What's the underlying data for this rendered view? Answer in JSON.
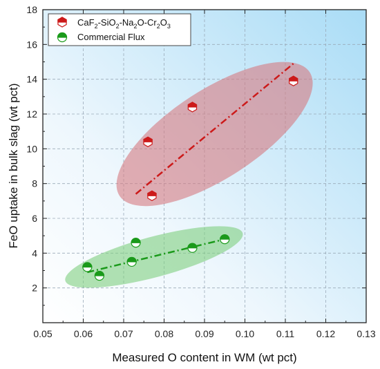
{
  "chart_data": {
    "type": "scatter",
    "xlabel": "Measured O content in WM (wt pct)",
    "ylabel": "FeO uptake in bulk slag (wt pct)",
    "xlim": [
      0.05,
      0.13
    ],
    "ylim": [
      0,
      18
    ],
    "xticks": [
      "0.05",
      "0.06",
      "0.07",
      "0.08",
      "0.09",
      "0.10",
      "0.11",
      "0.12",
      "0.13"
    ],
    "yticks": [
      "2",
      "4",
      "6",
      "8",
      "10",
      "12",
      "14",
      "16",
      "18"
    ],
    "grid": true,
    "legend_position": "top-left",
    "series": [
      {
        "name_parts": [
          "CaF",
          "2",
          "-SiO",
          "2",
          "-Na",
          "2",
          "O-Cr",
          "2",
          "O",
          "3"
        ],
        "color": "#cc1a1a",
        "marker": "hexagon-half",
        "ellipse_color": "#d67a80",
        "points": [
          {
            "x": 0.076,
            "y": 10.4
          },
          {
            "x": 0.077,
            "y": 7.3
          },
          {
            "x": 0.087,
            "y": 12.4
          },
          {
            "x": 0.112,
            "y": 13.9
          }
        ],
        "fit": [
          [
            0.073,
            7.4
          ],
          [
            0.112,
            14.9
          ]
        ]
      },
      {
        "name": "Commercial Flux",
        "color": "#1a9a1a",
        "marker": "circle-half",
        "ellipse_color": "#7fcf7f",
        "points": [
          {
            "x": 0.061,
            "y": 3.2
          },
          {
            "x": 0.064,
            "y": 2.7
          },
          {
            "x": 0.072,
            "y": 3.5
          },
          {
            "x": 0.073,
            "y": 4.6
          },
          {
            "x": 0.087,
            "y": 4.3
          },
          {
            "x": 0.095,
            "y": 4.8
          }
        ],
        "fit": [
          [
            0.061,
            2.9
          ],
          [
            0.095,
            4.8
          ]
        ]
      }
    ],
    "ellipses": [
      {
        "cx": 0.0925,
        "cy": 10.85,
        "rx_ratio": 0.39,
        "rotate": -33
      },
      {
        "cx": 0.0775,
        "cy": 3.78,
        "rx_ratio": 0.22,
        "rotate": -15
      }
    ]
  }
}
